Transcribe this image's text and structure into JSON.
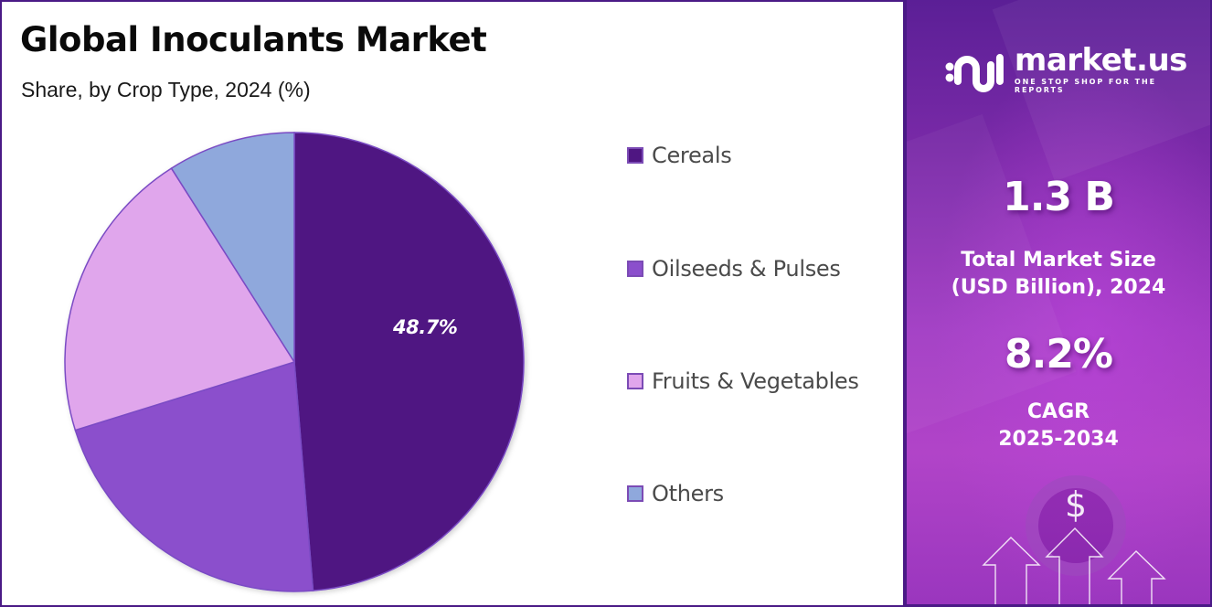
{
  "header": {
    "title": "Global Inoculants Market",
    "subtitle": "Share, by Crop Type, 2024 (%)"
  },
  "chart_data": {
    "type": "pie",
    "title": "Global Inoculants Market",
    "subtitle": "Share, by Crop Type, 2024 (%)",
    "categories": [
      "Cereals",
      "Oilseeds & Pulses",
      "Fruits & Vegetables",
      "Others"
    ],
    "values": [
      48.7,
      21.5,
      20.8,
      9.0
    ],
    "colors": [
      "#4f1682",
      "#8b4fcc",
      "#e0a6ec",
      "#8fa8dc"
    ],
    "data_labels": [
      "48.7%",
      "",
      "",
      ""
    ],
    "start_angle": "12 o'clock, clockwise",
    "legend_position": "right"
  },
  "pie": {
    "label_cereals": "48.7%"
  },
  "legend": {
    "items": [
      {
        "label": "Cereals",
        "color": "#4f1682"
      },
      {
        "label": "Oilseeds & Pulses",
        "color": "#8b4fcc"
      },
      {
        "label": "Fruits & Vegetables",
        "color": "#e0a6ec"
      },
      {
        "label": "Others",
        "color": "#8fa8dc"
      }
    ]
  },
  "sidebar": {
    "logo_name": "market.us",
    "logo_tagline": "ONE STOP SHOP FOR THE REPORTS",
    "market_size_value": "1.3 B",
    "market_size_label_line1": "Total Market Size",
    "market_size_label_line2": "(USD Billion), 2024",
    "cagr_value": "8.2%",
    "cagr_label_line1": "CAGR",
    "cagr_label_line2": "2025-2034",
    "currency_symbol": "$"
  },
  "colors": {
    "border": "#4a1a86",
    "sidebar_top": "#5b1f96",
    "sidebar_bottom": "#b144c8"
  }
}
